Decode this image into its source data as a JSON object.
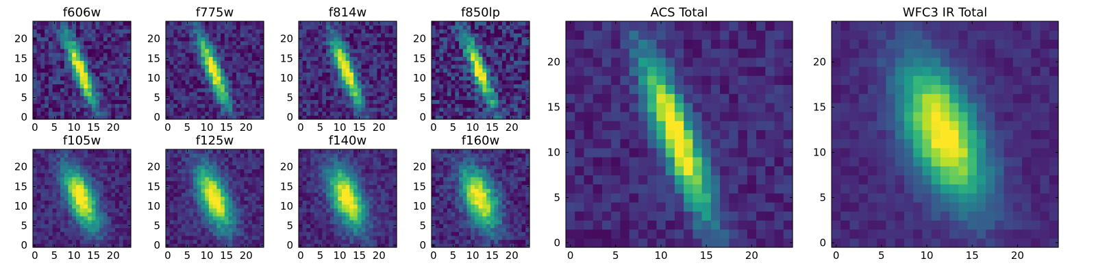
{
  "chart_data": [
    {
      "type": "heatmap",
      "title": "f606w",
      "angle_deg": 21,
      "sigma_major": 6.6,
      "sigma_minor": 1.25,
      "noise": 0.16,
      "center": [
        12.2,
        12.4
      ],
      "xlim": [
        0,
        25
      ],
      "ylim": [
        0,
        25
      ],
      "xticks": [
        0,
        5,
        10,
        15,
        20
      ],
      "yticks": [
        0,
        5,
        10,
        15,
        20
      ],
      "xtick_labels": [
        "0",
        "5",
        "10",
        "15",
        "20"
      ],
      "ytick_labels": [
        "0",
        "5",
        "10",
        "15",
        "20"
      ],
      "seed": 11
    },
    {
      "type": "heatmap",
      "title": "f775w",
      "angle_deg": 21,
      "sigma_major": 6.6,
      "sigma_minor": 1.3,
      "noise": 0.13,
      "center": [
        12.2,
        12.4
      ],
      "xlim": [
        0,
        25
      ],
      "ylim": [
        0,
        25
      ],
      "xticks": [
        0,
        5,
        10,
        15,
        20
      ],
      "yticks": [
        0,
        5,
        10,
        15,
        20
      ],
      "xtick_labels": [
        "0",
        "5",
        "10",
        "15",
        "20"
      ],
      "ytick_labels": [
        "0",
        "5",
        "10",
        "15",
        "20"
      ],
      "seed": 23
    },
    {
      "type": "heatmap",
      "title": "f814w",
      "angle_deg": 21,
      "sigma_major": 6.6,
      "sigma_minor": 1.35,
      "noise": 0.14,
      "center": [
        12.2,
        12.4
      ],
      "xlim": [
        0,
        25
      ],
      "ylim": [
        0,
        25
      ],
      "xticks": [
        0,
        5,
        10,
        15,
        20
      ],
      "yticks": [
        0,
        5,
        10,
        15,
        20
      ],
      "xtick_labels": [
        "0",
        "5",
        "10",
        "15",
        "20"
      ],
      "ytick_labels": [
        "0",
        "5",
        "10",
        "15",
        "20"
      ],
      "seed": 37
    },
    {
      "type": "heatmap",
      "title": "f850lp",
      "angle_deg": 21,
      "sigma_major": 6.6,
      "sigma_minor": 1.3,
      "noise": 0.2,
      "center": [
        12.2,
        12.4
      ],
      "xlim": [
        0,
        25
      ],
      "ylim": [
        0,
        25
      ],
      "xticks": [
        0,
        5,
        10,
        15,
        20
      ],
      "yticks": [
        0,
        5,
        10,
        15,
        20
      ],
      "xtick_labels": [
        "0",
        "5",
        "10",
        "15",
        "20"
      ],
      "ytick_labels": [
        "0",
        "5",
        "10",
        "15",
        "20"
      ],
      "seed": 41
    },
    {
      "type": "heatmap",
      "title": "f105w",
      "angle_deg": 22,
      "sigma_major": 5.8,
      "sigma_minor": 2.3,
      "noise": 0.1,
      "center": [
        12.3,
        12.6
      ],
      "xlim": [
        0,
        25
      ],
      "ylim": [
        0,
        25
      ],
      "xticks": [
        0,
        5,
        10,
        15,
        20
      ],
      "yticks": [
        0,
        5,
        10,
        15,
        20
      ],
      "xtick_labels": [
        "0",
        "5",
        "10",
        "15",
        "20"
      ],
      "ytick_labels": [
        "0",
        "5",
        "10",
        "15",
        "20"
      ],
      "seed": 53
    },
    {
      "type": "heatmap",
      "title": "f125w",
      "angle_deg": 22,
      "sigma_major": 5.8,
      "sigma_minor": 2.4,
      "noise": 0.1,
      "center": [
        12.3,
        12.6
      ],
      "xlim": [
        0,
        25
      ],
      "ylim": [
        0,
        25
      ],
      "xticks": [
        0,
        5,
        10,
        15,
        20
      ],
      "yticks": [
        0,
        5,
        10,
        15,
        20
      ],
      "xtick_labels": [
        "0",
        "5",
        "10",
        "15",
        "20"
      ],
      "ytick_labels": [
        "0",
        "5",
        "10",
        "15",
        "20"
      ],
      "seed": 67
    },
    {
      "type": "heatmap",
      "title": "f140w",
      "angle_deg": 22,
      "sigma_major": 5.7,
      "sigma_minor": 2.6,
      "noise": 0.1,
      "center": [
        12.3,
        12.6
      ],
      "xlim": [
        0,
        25
      ],
      "ylim": [
        0,
        25
      ],
      "xticks": [
        0,
        5,
        10,
        15,
        20
      ],
      "yticks": [
        0,
        5,
        10,
        15,
        20
      ],
      "xtick_labels": [
        "0",
        "5",
        "10",
        "15",
        "20"
      ],
      "ytick_labels": [
        "0",
        "5",
        "10",
        "15",
        "20"
      ],
      "seed": 79
    },
    {
      "type": "heatmap",
      "title": "f160w",
      "angle_deg": 22,
      "sigma_major": 5.6,
      "sigma_minor": 2.7,
      "noise": 0.12,
      "center": [
        12.3,
        12.6
      ],
      "xlim": [
        0,
        25
      ],
      "ylim": [
        0,
        25
      ],
      "xticks": [
        0,
        5,
        10,
        15,
        20
      ],
      "yticks": [
        0,
        5,
        10,
        15,
        20
      ],
      "xtick_labels": [
        "0",
        "5",
        "10",
        "15",
        "20"
      ],
      "ytick_labels": [
        "0",
        "5",
        "10",
        "15",
        "20"
      ],
      "seed": 83
    },
    {
      "type": "heatmap",
      "title": "ACS Total",
      "angle_deg": 21,
      "sigma_major": 6.7,
      "sigma_minor": 1.35,
      "noise": 0.09,
      "center": [
        12.2,
        12.4
      ],
      "xlim": [
        0,
        25
      ],
      "ylim": [
        0,
        25
      ],
      "xticks": [
        0,
        5,
        10,
        15,
        20
      ],
      "yticks": [
        0,
        5,
        10,
        15,
        20
      ],
      "xtick_labels": [
        "0",
        "5",
        "10",
        "15",
        "20"
      ],
      "ytick_labels": [
        "0",
        "5",
        "10",
        "15",
        "20"
      ],
      "seed": 97
    },
    {
      "type": "heatmap",
      "title": "WFC3 IR Total",
      "angle_deg": 22,
      "sigma_major": 5.7,
      "sigma_minor": 2.6,
      "noise": 0.06,
      "center": [
        12.3,
        12.6
      ],
      "xlim": [
        0,
        25
      ],
      "ylim": [
        0,
        25
      ],
      "xticks": [
        0,
        5,
        10,
        15,
        20
      ],
      "yticks": [
        0,
        5,
        10,
        15,
        20
      ],
      "xtick_labels": [
        "0",
        "5",
        "10",
        "15",
        "20"
      ],
      "ytick_labels": [
        "0",
        "5",
        "10",
        "15",
        "20"
      ],
      "seed": 101
    }
  ],
  "style": {
    "colormap": "viridis",
    "colormap_stops": [
      "#440154",
      "#482878",
      "#3e4989",
      "#31688e",
      "#26828e",
      "#1f9e89",
      "#35b779",
      "#6ece58",
      "#b5de2b",
      "#fde725"
    ],
    "frame_color": "#000000",
    "background": "#ffffff"
  }
}
